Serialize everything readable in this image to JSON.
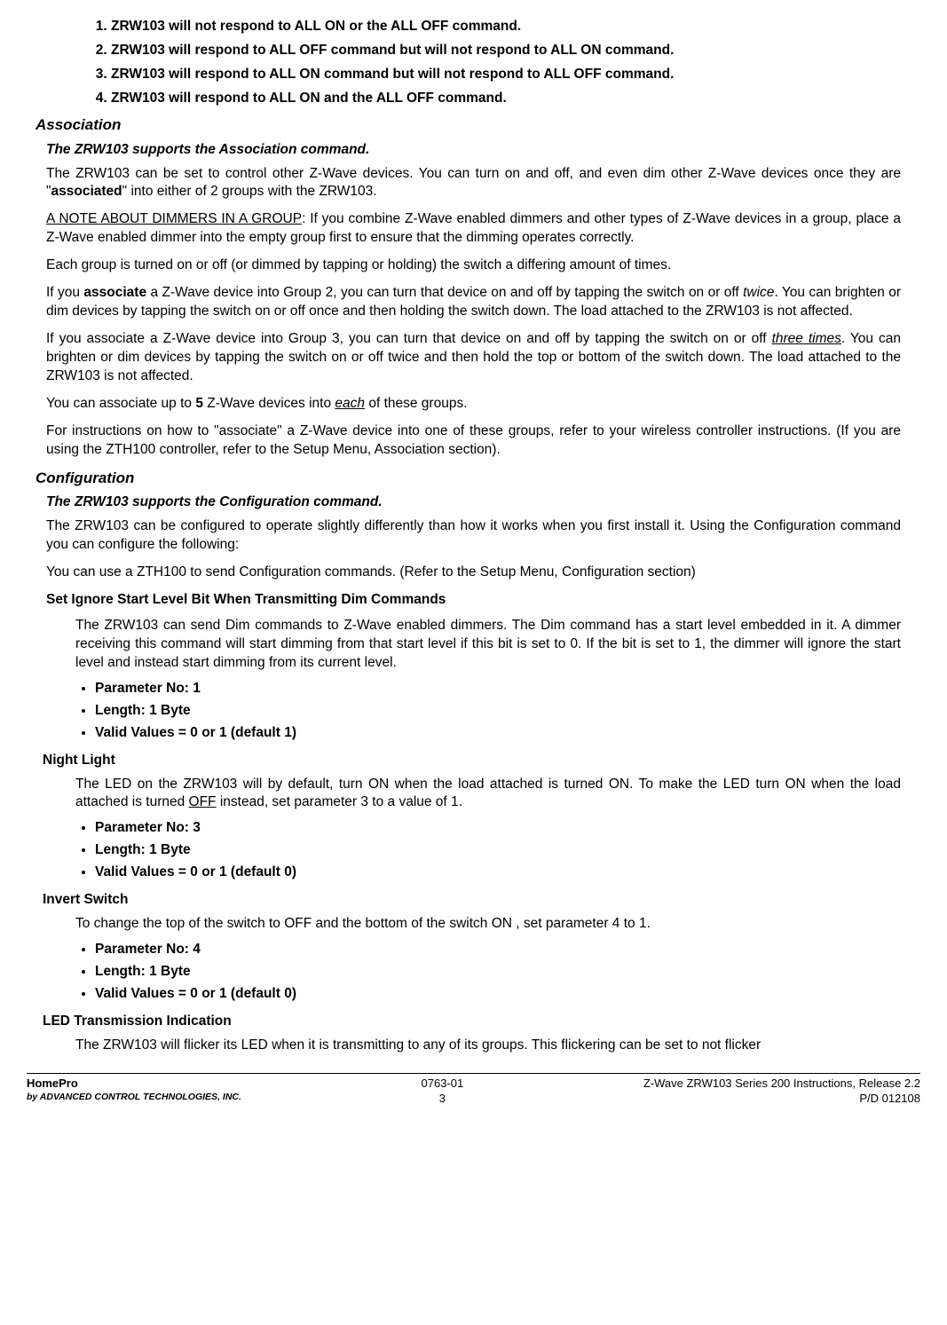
{
  "top_list": [
    "ZRW103 will not respond to ALL ON or the ALL OFF command.",
    "ZRW103 will respond to ALL OFF command but will not respond to ALL ON command.",
    "ZRW103 will respond to ALL ON command but will not respond to ALL OFF command.",
    "ZRW103 will respond to ALL ON and the ALL OFF command."
  ],
  "assoc": {
    "heading": "Association",
    "sub": "The ZRW103 supports the Association command.",
    "p1a": "The ZRW103 can be set to control other Z-Wave devices. You can turn on and off, and even dim other Z-Wave devices once they are \"",
    "p1b": "associated",
    "p1c": "\" into either of 2 groups with the ZRW103.",
    "p2a": "A NOTE ABOUT DIMMERS IN A GROUP",
    "p2b": ":  If you combine Z-Wave enabled dimmers and other types of Z-Wave devices in a group, place a Z-Wave enabled dimmer into the empty group first to ensure that the dimming operates correctly.",
    "p3": "Each group is turned on or off (or dimmed by tapping or holding) the switch a differing amount of times.",
    "p4a": "If you ",
    "p4b": "associate",
    "p4c": " a Z-Wave device into Group 2, you can turn that device on and off by tapping the switch on or off ",
    "p4d": "twice",
    "p4e": ". You can brighten or dim devices by tapping the switch on or off once and then holding the switch down.  The load attached to the ZRW103 is not affected.",
    "p5a": "If you associate a Z-Wave device into Group 3, you can turn that device on and off by tapping the switch on or off ",
    "p5b": "three times",
    "p5c": ". You can brighten or dim devices by tapping the switch on or off twice and then hold the top or bottom of the switch down. The load attached to the ZRW103 is not affected.",
    "p6a": "You can associate up to ",
    "p6b": "5",
    "p6c": " Z-Wave devices into ",
    "p6d": "each",
    "p6e": " of these groups.",
    "p7": "For instructions on how to  \"associate\" a Z-Wave device into one of these groups, refer to your wireless controller instructions. (If you are using the ZTH100 controller, refer to the Setup Menu, Association section)."
  },
  "config": {
    "heading": "Configuration",
    "sub": "The ZRW103 supports the Configuration command.",
    "p1": "The ZRW103 can be configured to operate slightly differently than how it works when you first install it. Using the Configuration command you can configure the following:",
    "p2": "You can use a ZTH100 to send Configuration commands. (Refer to the Setup Menu, Configuration section)",
    "s1": {
      "title": "Set Ignore Start Level Bit When Transmitting Dim Commands",
      "body": "The ZRW103 can send Dim commands to Z-Wave enabled dimmers. The Dim command has a start level embedded in it.  A dimmer receiving this command will start dimming from that start level if this bit is set to 0. If the bit is set to 1, the dimmer will ignore the start level and instead start dimming from its current level.",
      "b1": "Parameter No: 1",
      "b2": "Length: 1 Byte",
      "b3": "Valid Values  = 0 or 1 (default 1)"
    },
    "s2": {
      "title": "Night Light",
      "body_a": "The LED on the ZRW103 will by default, turn ON when the load attached is turned ON. To make the LED turn ON when the load attached is turned ",
      "body_b": "OFF",
      "body_c": " instead, set parameter 3 to a value of 1.",
      "b1": "Parameter No: 3",
      "b2": "Length: 1 Byte",
      "b3": "Valid Values = 0 or 1 (default 0)"
    },
    "s3": {
      "title": "Invert Switch",
      "body": "To change the top of the switch to OFF and the bottom of the switch ON , set parameter 4 to 1.",
      "b1": "Parameter No: 4",
      "b2": "Length: 1 Byte",
      "b3": "Valid Values = 0 or 1 (default 0)"
    },
    "s4": {
      "title": "LED Transmission Indication",
      "body": "The ZRW103 will flicker its LED when it is transmitting to any of its groups.  This flickering can be set to not flicker"
    }
  },
  "footer": {
    "brand": "HomePro",
    "by": "by ADVANCED CONTROL TECHNOLOGIES, INC.",
    "doc": "0763-01",
    "page": "3",
    "title": "Z-Wave ZRW103 Series 200 Instructions, Release 2.2",
    "pd": "P/D 012108"
  }
}
